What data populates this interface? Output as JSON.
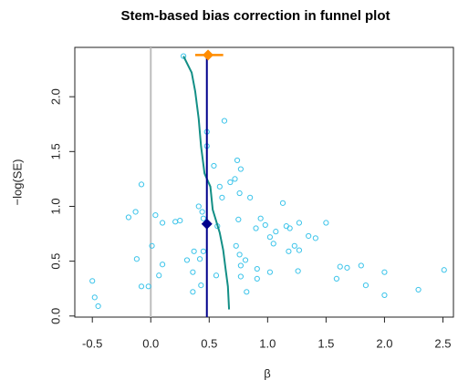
{
  "chart_data": {
    "type": "scatter",
    "title": "Stem-based bias correction in funnel plot",
    "xlabel": "β",
    "ylabel": "−log(SE)",
    "xlim": [
      -0.65,
      2.59
    ],
    "ylim": [
      -0.01,
      2.45
    ],
    "xticks": [
      -0.5,
      {
        "value": 0,
        "label": "0.0"
      },
      0.5,
      {
        "value": 1,
        "label": "1.0"
      },
      1.5,
      {
        "value": 2,
        "label": "2.0"
      },
      2.5
    ],
    "yticks": [
      {
        "value": 0,
        "label": "0.0"
      },
      0.5,
      {
        "value": 1,
        "label": "1.0"
      },
      1.5,
      {
        "value": 2,
        "label": "2.0"
      }
    ],
    "series": [
      {
        "type": "points",
        "color": "#3cc4ea",
        "x": [
          0.28,
          0.63,
          0.48,
          0.48,
          0.74,
          0.77,
          0.54,
          0.72,
          0.68,
          0.59,
          0.76,
          0.85,
          -0.08,
          0.61,
          1.13,
          0.41,
          0.44,
          -0.13,
          -0.19,
          0.04,
          0.1,
          0.21,
          0.25,
          0.45,
          0.75,
          0.57,
          0.94,
          0.9,
          0.98,
          1.07,
          1.02,
          1.16,
          1.19,
          1.27,
          1.5,
          1.05,
          1.35,
          1.41,
          1.23,
          1.18,
          1.27,
          0.73,
          0.76,
          0.81,
          0.01,
          -0.12,
          0.37,
          0.45,
          0.42,
          0.31,
          0.1,
          0.36,
          0.77,
          0.91,
          1.02,
          1.26,
          1.62,
          1.8,
          1.68,
          2.0,
          2.51,
          0.77,
          0.56,
          0.07,
          0.91,
          1.59,
          1.84,
          0.43,
          0.36,
          -0.08,
          -0.02,
          -0.5,
          0.82,
          2.0,
          2.29,
          -0.48,
          -0.45
        ],
        "y": [
          2.37,
          1.78,
          1.68,
          1.55,
          1.42,
          1.34,
          1.37,
          1.25,
          1.22,
          1.18,
          1.12,
          1.08,
          1.2,
          1.08,
          1.03,
          1.0,
          0.95,
          0.95,
          0.9,
          0.92,
          0.85,
          0.86,
          0.87,
          0.89,
          0.88,
          0.82,
          0.89,
          0.8,
          0.83,
          0.77,
          0.72,
          0.82,
          0.8,
          0.85,
          0.85,
          0.66,
          0.73,
          0.71,
          0.64,
          0.59,
          0.6,
          0.64,
          0.56,
          0.51,
          0.64,
          0.52,
          0.59,
          0.59,
          0.52,
          0.51,
          0.47,
          0.4,
          0.46,
          0.43,
          0.4,
          0.41,
          0.45,
          0.46,
          0.44,
          0.4,
          0.42,
          0.36,
          0.37,
          0.37,
          0.34,
          0.34,
          0.28,
          0.28,
          0.22,
          0.27,
          0.27,
          0.32,
          0.22,
          0.19,
          0.24,
          0.17,
          0.09
        ]
      },
      {
        "type": "line",
        "color": "#138f86",
        "x": [
          0.28,
          0.35,
          0.38,
          0.41,
          0.43,
          0.46,
          0.51,
          0.53,
          0.59,
          0.62,
          0.64,
          0.66,
          0.67
        ],
        "y": [
          2.37,
          2.22,
          2.05,
          1.8,
          1.55,
          1.3,
          1.18,
          0.97,
          0.76,
          0.6,
          0.43,
          0.27,
          0.06
        ]
      }
    ],
    "zero_line": {
      "x": 0,
      "color": "#bdbdbd"
    },
    "estimate": {
      "x": 0.48,
      "y": 0.84,
      "color": "#00008b"
    },
    "corrected": {
      "x": 0.49,
      "y": 2.38,
      "ci": [
        0.38,
        0.62
      ],
      "color": "#ff8c00"
    }
  }
}
